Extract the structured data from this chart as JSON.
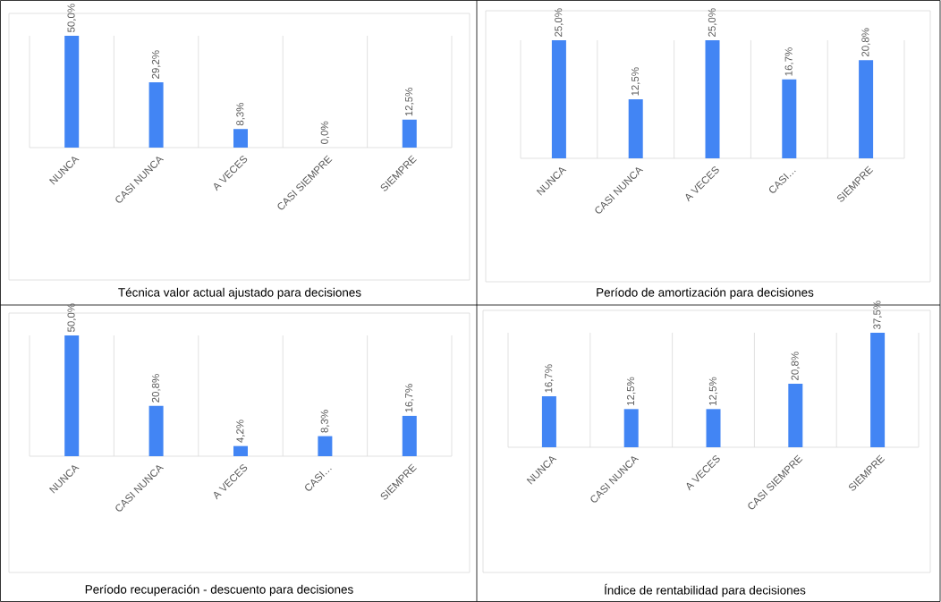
{
  "chart_data": [
    {
      "type": "bar",
      "title": "Técnica valor actual ajustado para decisiones",
      "categories": [
        "NUNCA",
        "CASI NUNCA",
        "A VECES",
        "CASI SIEMPRE",
        "SIEMPRE"
      ],
      "values": [
        50.0,
        29.2,
        8.3,
        0.0,
        12.5
      ],
      "value_labels": [
        "50,0%",
        "29,2%",
        "8,3%",
        "0,0%",
        "12,5%"
      ],
      "color": "#4285f4",
      "grid": "x"
    },
    {
      "type": "bar",
      "title": "Período de amortización para decisiones",
      "categories": [
        "NUNCA",
        "CASI NUNCA",
        "A VECES",
        "CASI…",
        "SIEMPRE"
      ],
      "values": [
        25.0,
        12.5,
        25.0,
        16.7,
        20.8
      ],
      "value_labels": [
        "25,0%",
        "12,5%",
        "25,0%",
        "16,7%",
        "20,8%"
      ],
      "color": "#4285f4",
      "grid": "x"
    },
    {
      "type": "bar",
      "title": "Período recuperación - descuento para decisiones",
      "categories": [
        "NUNCA",
        "CASI NUNCA",
        "A VECES",
        "CASI…",
        "SIEMPRE"
      ],
      "values": [
        50.0,
        20.8,
        4.2,
        8.3,
        16.7
      ],
      "value_labels": [
        "50,0%",
        "20,8%",
        "4,2%",
        "8,3%",
        "16,7%"
      ],
      "color": "#4285f4",
      "grid": "x"
    },
    {
      "type": "bar",
      "title": "Índice de rentabilidad para decisiones",
      "categories": [
        "NUNCA",
        "CASI NUNCA",
        "A VECES",
        "CASI SIEMPRE",
        "SIEMPRE"
      ],
      "values": [
        16.7,
        12.5,
        12.5,
        20.8,
        37.5
      ],
      "value_labels": [
        "16,7%",
        "12,5%",
        "12,5%",
        "20,8%",
        "37,5%"
      ],
      "color": "#4285f4",
      "grid": "x"
    }
  ]
}
